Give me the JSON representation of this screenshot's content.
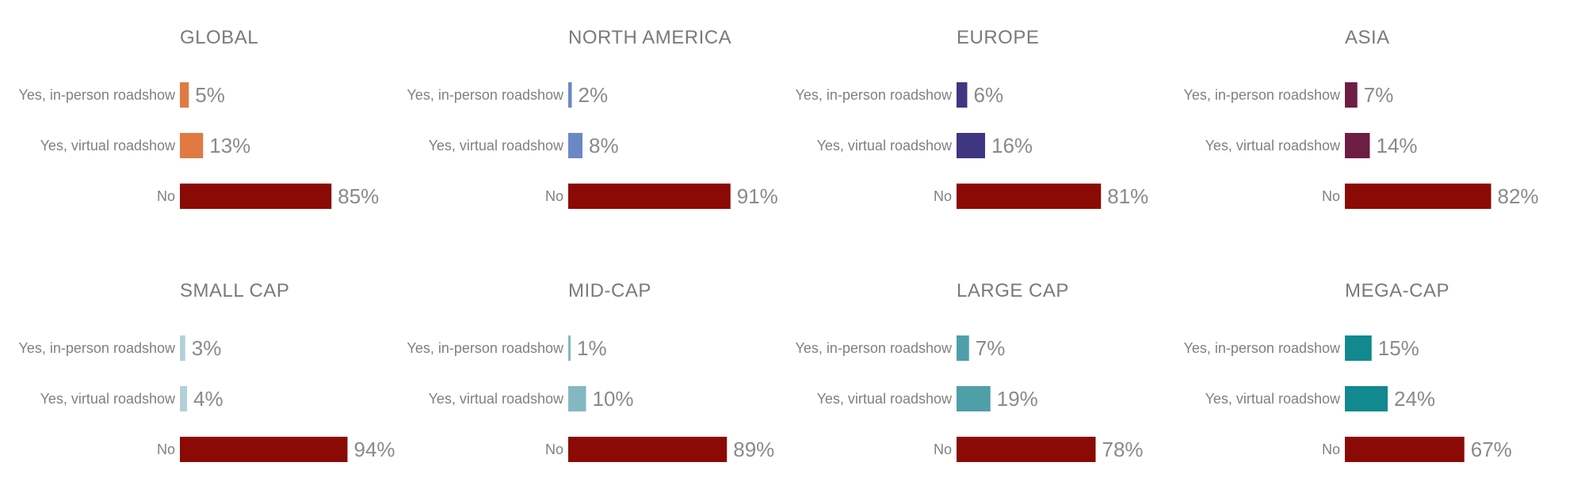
{
  "chart_data": [
    {
      "type": "bar",
      "orientation": "horizontal",
      "title": "GLOBAL",
      "categories": [
        "Yes, in-person roadshow",
        "Yes, virtual roadshow",
        "No"
      ],
      "values": [
        5,
        13,
        85
      ],
      "value_labels": [
        "5%",
        "13%",
        "85%"
      ],
      "colors": [
        "#e07a42",
        "#e07a42",
        "#8b0a06"
      ]
    },
    {
      "type": "bar",
      "orientation": "horizontal",
      "title": "NORTH AMERICA",
      "categories": [
        "Yes, in-person roadshow",
        "Yes, virtual roadshow",
        "No"
      ],
      "values": [
        2,
        8,
        91
      ],
      "value_labels": [
        "2%",
        "8%",
        "91%"
      ],
      "colors": [
        "#6b87c6",
        "#6b87c6",
        "#8b0a06"
      ]
    },
    {
      "type": "bar",
      "orientation": "horizontal",
      "title": "EUROPE",
      "categories": [
        "Yes, in-person roadshow",
        "Yes, virtual roadshow",
        "No"
      ],
      "values": [
        6,
        16,
        81
      ],
      "value_labels": [
        "6%",
        "16%",
        "81%"
      ],
      "colors": [
        "#3f3682",
        "#3f3682",
        "#8b0a06"
      ]
    },
    {
      "type": "bar",
      "orientation": "horizontal",
      "title": "ASIA",
      "categories": [
        "Yes, in-person roadshow",
        "Yes, virtual roadshow",
        "No"
      ],
      "values": [
        7,
        14,
        82
      ],
      "value_labels": [
        "7%",
        "14%",
        "82%"
      ],
      "colors": [
        "#6e1d44",
        "#6e1d44",
        "#8b0a06"
      ]
    },
    {
      "type": "bar",
      "orientation": "horizontal",
      "title": "SMALL CAP",
      "categories": [
        "Yes, in-person roadshow",
        "Yes, virtual roadshow",
        "No"
      ],
      "values": [
        3,
        4,
        94
      ],
      "value_labels": [
        "3%",
        "4%",
        "94%"
      ],
      "colors": [
        "#b2d0da",
        "#b2d0da",
        "#8b0a06"
      ]
    },
    {
      "type": "bar",
      "orientation": "horizontal",
      "title": "MID-CAP",
      "categories": [
        "Yes, in-person roadshow",
        "Yes, virtual roadshow",
        "No"
      ],
      "values": [
        1,
        10,
        89
      ],
      "value_labels": [
        "1%",
        "10%",
        "89%"
      ],
      "colors": [
        "#84b8c0",
        "#84b8c0",
        "#8b0a06"
      ]
    },
    {
      "type": "bar",
      "orientation": "horizontal",
      "title": "LARGE CAP",
      "categories": [
        "Yes, in-person roadshow",
        "Yes, virtual roadshow",
        "No"
      ],
      "values": [
        7,
        19,
        78
      ],
      "value_labels": [
        "7%",
        "19%",
        "78%"
      ],
      "colors": [
        "#4f9fa9",
        "#4f9fa9",
        "#8b0a06"
      ]
    },
    {
      "type": "bar",
      "orientation": "horizontal",
      "title": "MEGA-CAP",
      "categories": [
        "Yes, in-person roadshow",
        "Yes, virtual roadshow",
        "No"
      ],
      "values": [
        15,
        24,
        67
      ],
      "value_labels": [
        "15%",
        "24%",
        "67%"
      ],
      "colors": [
        "#12888f",
        "#12888f",
        "#8b0a06"
      ]
    }
  ]
}
